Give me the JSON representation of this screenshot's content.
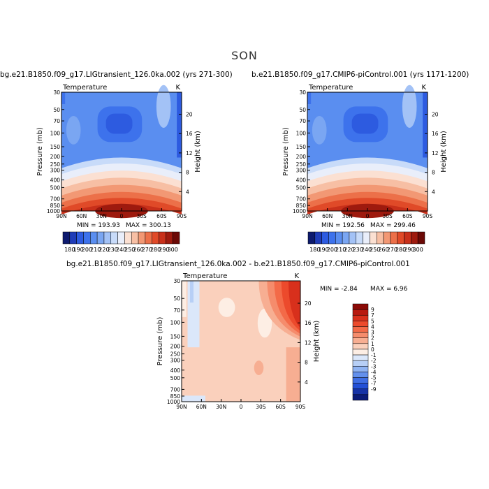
{
  "page_title": "SON",
  "chart_data": [
    {
      "type": "contour",
      "title": "bg.e21.B1850.f09_g17.LIGtransient_126.0ka.002 (yrs 271-300)",
      "field_label": "Temperature",
      "units": "K",
      "ylabel": "Pressure (mb)",
      "ylabel_right": "Height (km)",
      "x_ticks": [
        "90N",
        "60N",
        "30N",
        "0",
        "30S",
        "60S",
        "90S"
      ],
      "y_ticks": [
        "30",
        "50",
        "70",
        "100",
        "150",
        "200",
        "250",
        "300",
        "400",
        "500",
        "700",
        "850",
        "1000"
      ],
      "height_ticks": [
        "20",
        "16",
        "12",
        "8",
        "4"
      ],
      "min_label": "MIN = 193.93",
      "max_label": "MAX = 300.13",
      "min": 193.93,
      "max": 300.13,
      "colorbar_labels": [
        "180",
        "190",
        "200",
        "210",
        "220",
        "230",
        "240",
        "250",
        "260",
        "270",
        "280",
        "290",
        "300"
      ],
      "colorbar_colors": [
        "#0d1a6e",
        "#1f3cb8",
        "#2d5be0",
        "#3d72ec",
        "#5a8ef0",
        "#7aa6f2",
        "#a3c2f6",
        "#c8dbf9",
        "#e9eefa",
        "#fbe0d2",
        "#f7bfa4",
        "#f29874",
        "#ec7049",
        "#e04a28",
        "#c8301a",
        "#9e1a0e",
        "#6b0906"
      ]
    },
    {
      "type": "contour",
      "title": "b.e21.B1850.f09_g17.CMIP6-piControl.001 (yrs 1171-1200)",
      "field_label": "Temperature",
      "units": "K",
      "ylabel": "Pressure (mb)",
      "ylabel_right": "Height (km)",
      "x_ticks": [
        "90N",
        "60N",
        "30N",
        "0",
        "30S",
        "60S",
        "90S"
      ],
      "y_ticks": [
        "30",
        "50",
        "70",
        "100",
        "150",
        "200",
        "250",
        "300",
        "400",
        "500",
        "700",
        "850",
        "1000"
      ],
      "height_ticks": [
        "20",
        "16",
        "12",
        "8",
        "4"
      ],
      "min_label": "MIN = 192.56",
      "max_label": "MAX = 299.46",
      "min": 192.56,
      "max": 299.46,
      "colorbar_labels": [
        "180",
        "190",
        "200",
        "210",
        "220",
        "230",
        "240",
        "250",
        "260",
        "270",
        "280",
        "290",
        "300"
      ],
      "colorbar_colors": [
        "#0d1a6e",
        "#1f3cb8",
        "#2d5be0",
        "#3d72ec",
        "#5a8ef0",
        "#7aa6f2",
        "#a3c2f6",
        "#c8dbf9",
        "#e9eefa",
        "#fbe0d2",
        "#f7bfa4",
        "#f29874",
        "#ec7049",
        "#e04a28",
        "#c8301a",
        "#9e1a0e",
        "#6b0906"
      ]
    },
    {
      "type": "contour",
      "title": "bg.e21.B1850.f09_g17.LIGtransient_126.0ka.002 - b.e21.B1850.f09_g17.CMIP6-piControl.001",
      "field_label": "Temperature",
      "units": "K",
      "ylabel": "Pressure (mb)",
      "ylabel_right": "Height (km)",
      "x_ticks": [
        "90N",
        "60N",
        "30N",
        "0",
        "30S",
        "60S",
        "90S"
      ],
      "y_ticks": [
        "30",
        "50",
        "70",
        "100",
        "150",
        "200",
        "250",
        "300",
        "400",
        "500",
        "700",
        "850",
        "1000"
      ],
      "height_ticks": [
        "20",
        "16",
        "12",
        "8",
        "4"
      ],
      "min_label": "MIN = -2.84",
      "max_label": "MAX = 6.96",
      "min": -2.84,
      "max": 6.96,
      "colorbar_labels": [
        "9",
        "7",
        "5",
        "4",
        "3",
        "2",
        "1",
        "0",
        "-1",
        "-2",
        "-3",
        "-4",
        "-5",
        "-7",
        "-9"
      ],
      "colorbar_colors": [
        "#8b0a06",
        "#b81a10",
        "#d8301c",
        "#ec4a2c",
        "#f36a48",
        "#f58c6c",
        "#f7ae92",
        "#fad0bc",
        "#fdeee4",
        "#dbe7fa",
        "#b7cff6",
        "#8fb3f2",
        "#6390ec",
        "#3f6ee4",
        "#2350d6",
        "#1633a6",
        "#0b1c78"
      ]
    }
  ]
}
